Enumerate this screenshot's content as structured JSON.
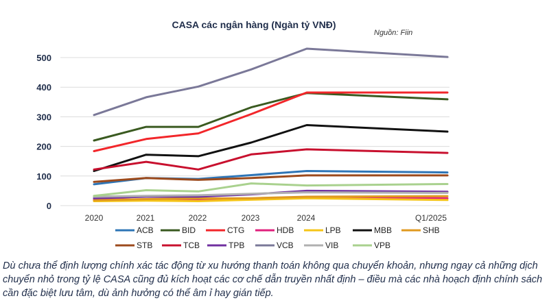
{
  "chart_data": {
    "type": "line",
    "title": "CASA các ngân hàng (Ngàn tỷ VNĐ)",
    "source": "Nguồn: Fiin",
    "categories": [
      "2020",
      "2021",
      "2022",
      "2023",
      "2024",
      "Q1/2025"
    ],
    "y_ticks": [
      "0",
      "100",
      "200",
      "300",
      "400",
      "500"
    ],
    "ylim": [
      0,
      550
    ],
    "grid": true,
    "legend_position": "bottom",
    "series": [
      {
        "name": "ACB",
        "color": "#2e75b6",
        "values": [
          72,
          93,
          90,
          103,
          117,
          112
        ]
      },
      {
        "name": "BID",
        "color": "#3a5a20",
        "values": [
          220,
          266,
          266,
          332,
          380,
          359
        ]
      },
      {
        "name": "CTG",
        "color": "#f2262a",
        "values": [
          184,
          225,
          244,
          309,
          382,
          382
        ]
      },
      {
        "name": "HDB",
        "color": "#e0217d",
        "values": [
          20,
          21,
          22,
          23,
          26,
          25
        ]
      },
      {
        "name": "LPB",
        "color": "#f5c518",
        "values": [
          15,
          17,
          15,
          20,
          25,
          19
        ]
      },
      {
        "name": "MBB",
        "color": "#111111",
        "values": [
          117,
          172,
          167,
          213,
          272,
          250
        ]
      },
      {
        "name": "SHB",
        "color": "#e09a1f",
        "values": [
          18,
          22,
          24,
          25,
          30,
          32
        ]
      },
      {
        "name": "STB",
        "color": "#9c4a1c",
        "values": [
          80,
          93,
          87,
          93,
          102,
          102
        ]
      },
      {
        "name": "TCB",
        "color": "#c8102e",
        "values": [
          122,
          148,
          122,
          173,
          190,
          178
        ]
      },
      {
        "name": "TPB",
        "color": "#7030a0",
        "values": [
          25,
          30,
          30,
          38,
          50,
          47
        ]
      },
      {
        "name": "VCB",
        "color": "#7a7898",
        "values": [
          306,
          366,
          402,
          460,
          530,
          502
        ]
      },
      {
        "name": "VIB",
        "color": "#b0b0b0",
        "values": [
          30,
          33,
          35,
          40,
          45,
          43
        ]
      },
      {
        "name": "VPB",
        "color": "#a9d18e",
        "values": [
          33,
          52,
          48,
          75,
          68,
          73
        ]
      }
    ]
  },
  "caption": "Dù chưa thể định lượng chính xác tác động từ xu hướng thanh toán không qua chuyển khoản, nhưng ngay cả những dịch chuyển nhỏ trong tỷ lệ CASA cũng đủ kích hoạt các cơ chế dẫn truyền nhất định – điều mà các nhà hoạch định chính sách cần đặc biệt lưu tâm, dù ảnh hưởng có thể âm ỉ hay gián tiếp."
}
